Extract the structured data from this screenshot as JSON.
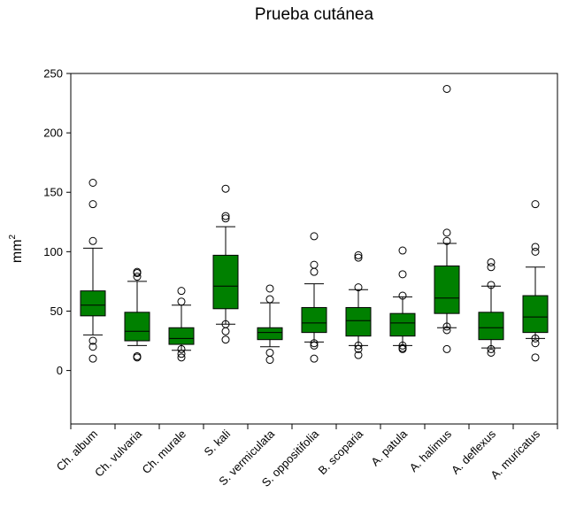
{
  "chart_data": {
    "type": "box",
    "title": "Prueba cutánea",
    "ylabel": "mm",
    "ylabel_superscript": "2",
    "xlabel": "",
    "ylim": [
      -45,
      250
    ],
    "yticks": [
      0,
      50,
      100,
      150,
      200,
      250
    ],
    "box_color": "#008000",
    "grid": false,
    "categories": [
      "Ch. album",
      "Ch. vulvaria",
      "Ch. murale",
      "S. kali",
      "S. vermiculata",
      "S. oppositifolia",
      "B. scoparia",
      "A. patula",
      "A. halimus",
      "A. deflexus",
      "A. muricatus"
    ],
    "series": [
      {
        "stats": [
          {
            "whisker_low": 30,
            "q1": 46,
            "median": 55,
            "q3": 67,
            "whisker_high": 103,
            "outliers": [
              10,
              20,
              25,
              109,
              140,
              158
            ]
          },
          {
            "whisker_low": 21,
            "q1": 25,
            "median": 33,
            "q3": 49,
            "whisker_high": 75,
            "outliers": [
              11,
              12,
              79,
              82,
              83
            ]
          },
          {
            "whisker_low": 17,
            "q1": 22,
            "median": 27,
            "q3": 36,
            "whisker_high": 55,
            "outliers": [
              11,
              14,
              18,
              58,
              67
            ]
          },
          {
            "whisker_low": 39,
            "q1": 52,
            "median": 71,
            "q3": 97,
            "whisker_high": 121,
            "outliers": [
              26,
              33,
              39,
              128,
              130,
              153
            ]
          },
          {
            "whisker_low": 20,
            "q1": 26,
            "median": 32,
            "q3": 36,
            "whisker_high": 57,
            "outliers": [
              9,
              15,
              60,
              69
            ]
          },
          {
            "whisker_low": 24,
            "q1": 32,
            "median": 40,
            "q3": 53,
            "whisker_high": 73,
            "outliers": [
              10,
              21,
              23,
              83,
              89,
              113
            ]
          },
          {
            "whisker_low": 21,
            "q1": 29,
            "median": 42,
            "q3": 53,
            "whisker_high": 68,
            "outliers": [
              13,
              18,
              21,
              70,
              95,
              97
            ]
          },
          {
            "whisker_low": 21,
            "q1": 29,
            "median": 40,
            "q3": 48,
            "whisker_high": 62,
            "outliers": [
              18,
              19,
              21,
              63,
              81,
              101
            ]
          },
          {
            "whisker_low": 36,
            "q1": 48,
            "median": 61,
            "q3": 88,
            "whisker_high": 107,
            "outliers": [
              18,
              34,
              37,
              109,
              116,
              237
            ]
          },
          {
            "whisker_low": 19,
            "q1": 26,
            "median": 36,
            "q3": 49,
            "whisker_high": 71,
            "outliers": [
              15,
              18,
              72,
              87,
              91
            ]
          },
          {
            "whisker_low": 27,
            "q1": 32,
            "median": 45,
            "q3": 63,
            "whisker_high": 87,
            "outliers": [
              11,
              23,
              27,
              100,
              104,
              140
            ]
          }
        ]
      }
    ]
  }
}
